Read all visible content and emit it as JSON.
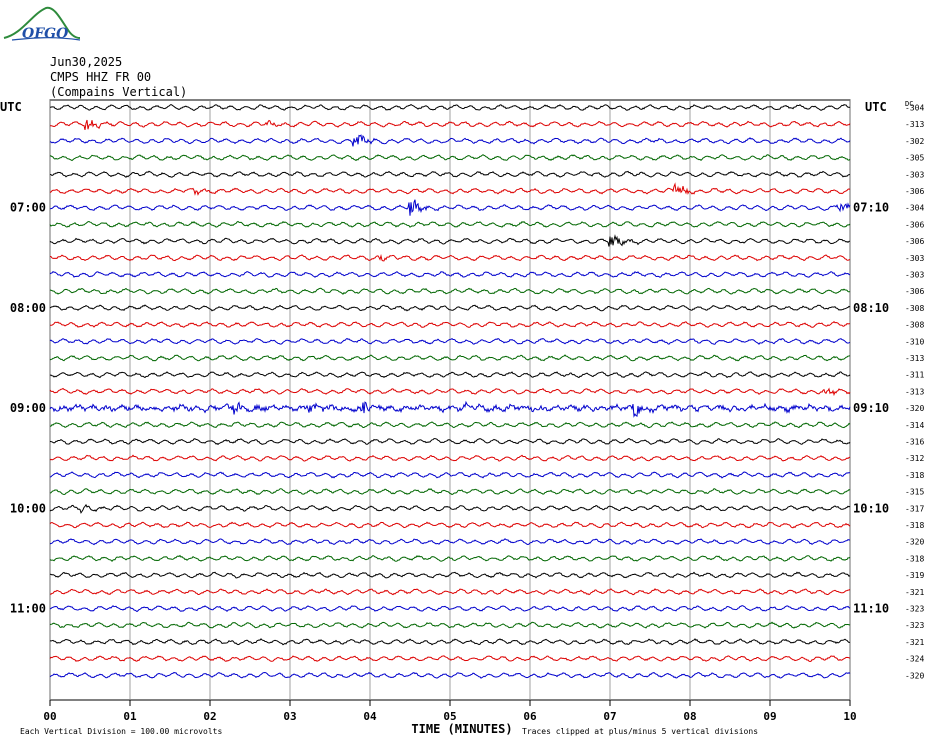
{
  "header": {
    "logo_text": "OFGO",
    "date": "Jun30,2025",
    "station": "CMPS HHZ FR 00",
    "location": "(Compains Vertical)"
  },
  "chart_data": {
    "type": "line",
    "title": "CMPS HHZ FR 00",
    "xlabel": "TIME (MINUTES)",
    "left_axis_title": "UTC",
    "right_axis_title": "UTC",
    "dc_label": "DC",
    "x_ticks": [
      "00",
      "01",
      "02",
      "03",
      "04",
      "05",
      "06",
      "07",
      "08",
      "09",
      "10"
    ],
    "xlim": [
      0,
      10
    ],
    "left_hour_labels": [
      {
        "row": 6,
        "text": "07:00"
      },
      {
        "row": 12,
        "text": "08:00"
      },
      {
        "row": 18,
        "text": "09:00"
      },
      {
        "row": 24,
        "text": "10:00"
      },
      {
        "row": 30,
        "text": "11:00"
      }
    ],
    "right_hour_labels": [
      {
        "row": 6,
        "text": "07:10"
      },
      {
        "row": 12,
        "text": "08:10"
      },
      {
        "row": 18,
        "text": "09:10"
      },
      {
        "row": 24,
        "text": "10:10"
      },
      {
        "row": 30,
        "text": "11:10"
      }
    ],
    "dc_offsets": [
      "-304",
      "-313",
      "-302",
      "-305",
      "-303",
      "-306",
      "-304",
      "-306",
      "-306",
      "-303",
      "-303",
      "-306",
      "-308",
      "-308",
      "-310",
      "-313",
      "-311",
      "-313",
      "-320",
      "-314",
      "-316",
      "-312",
      "-318",
      "-315",
      "-317",
      "-318",
      "-320",
      "-318",
      "-319",
      "-321",
      "-323",
      "-323",
      "-321",
      "-324",
      "-320"
    ],
    "trace_colors": [
      "#000000",
      "#dd0000",
      "#0000cc",
      "#006600"
    ],
    "events": [
      {
        "row": 1,
        "x": 0.45,
        "amp": 3
      },
      {
        "row": 1,
        "x": 2.7,
        "amp": 1.5
      },
      {
        "row": 2,
        "x": 3.8,
        "amp": 4
      },
      {
        "row": 5,
        "x": 1.8,
        "amp": 1.5
      },
      {
        "row": 5,
        "x": 7.8,
        "amp": 4
      },
      {
        "row": 6,
        "x": 4.5,
        "amp": 5
      },
      {
        "row": 6,
        "x": 9.85,
        "amp": 3
      },
      {
        "row": 8,
        "x": 7.0,
        "amp": 4
      },
      {
        "row": 9,
        "x": 4.1,
        "amp": 1.5
      },
      {
        "row": 17,
        "x": 9.7,
        "amp": 2
      },
      {
        "row": 18,
        "x": 2.3,
        "amp": 3
      },
      {
        "row": 18,
        "x": 3.2,
        "amp": 2.5
      },
      {
        "row": 18,
        "x": 3.9,
        "amp": 3
      },
      {
        "row": 18,
        "x": 5.2,
        "amp": 1.5
      },
      {
        "row": 18,
        "x": 7.3,
        "amp": 5
      },
      {
        "row": 24,
        "x": 0.4,
        "amp": 1.5
      }
    ],
    "noisy_rows": [
      18
    ]
  },
  "footer": {
    "left_note": "Each Vertical Division =  100.00 microvolts",
    "right_note": "Traces clipped at plus/minus 5 vertical divisions"
  }
}
